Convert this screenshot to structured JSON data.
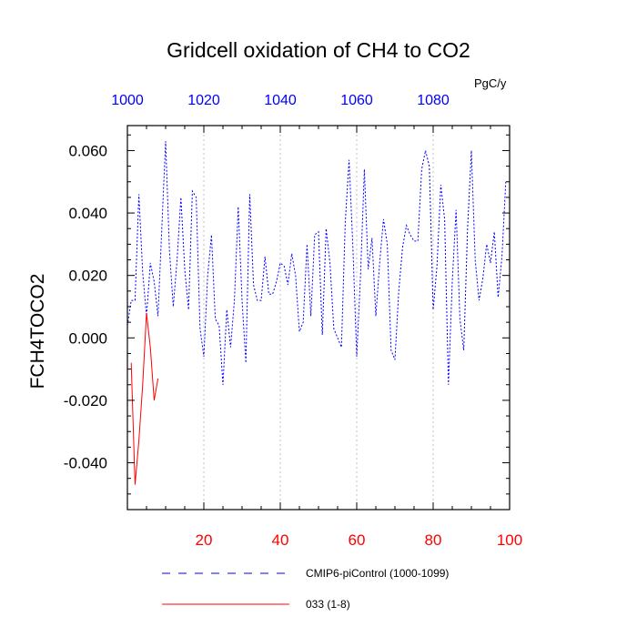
{
  "chart_data": {
    "type": "line",
    "title": "Gridcell oxidation of CH4 to CO2",
    "ylabel": "FCH4TOCO2",
    "units": "PgC/y",
    "bottom_axis": {
      "range": [
        0,
        100
      ],
      "ticks": [
        20,
        40,
        60,
        80,
        100
      ],
      "tick_labels": [
        "20",
        "40",
        "60",
        "80",
        "100"
      ],
      "color": "#ff0000"
    },
    "top_axis": {
      "range": [
        1000,
        1100
      ],
      "ticks": [
        1000,
        1020,
        1040,
        1060,
        1080
      ],
      "tick_labels": [
        "1000",
        "1020",
        "1040",
        "1060",
        "1080"
      ],
      "color": "#0000ff"
    },
    "y_axis": {
      "range": [
        -0.055,
        0.068
      ],
      "ticks": [
        -0.04,
        -0.02,
        0,
        0.02,
        0.04,
        0.06
      ],
      "tick_labels": [
        "-0.040",
        "-0.020",
        "0.000",
        "0.020",
        "0.040",
        "0.060"
      ]
    },
    "grid": {
      "vertical_dashed": [
        20,
        40,
        60,
        80
      ]
    },
    "series": [
      {
        "name": "CMIP6-piControl (1000-1099)",
        "axis": "top",
        "color": "#0000ff",
        "style": "dashed",
        "x": [
          1000,
          1001,
          1002,
          1003,
          1004,
          1005,
          1006,
          1007,
          1008,
          1009,
          1010,
          1011,
          1012,
          1013,
          1014,
          1015,
          1016,
          1017,
          1018,
          1019,
          1020,
          1021,
          1022,
          1023,
          1024,
          1025,
          1026,
          1027,
          1028,
          1029,
          1030,
          1031,
          1032,
          1033,
          1034,
          1035,
          1036,
          1037,
          1038,
          1039,
          1040,
          1041,
          1042,
          1043,
          1044,
          1045,
          1046,
          1047,
          1048,
          1049,
          1050,
          1051,
          1052,
          1053,
          1054,
          1055,
          1056,
          1057,
          1058,
          1059,
          1060,
          1061,
          1062,
          1063,
          1064,
          1065,
          1066,
          1067,
          1068,
          1069,
          1070,
          1071,
          1072,
          1073,
          1074,
          1075,
          1076,
          1077,
          1078,
          1079,
          1080,
          1081,
          1082,
          1083,
          1084,
          1085,
          1086,
          1087,
          1088,
          1089,
          1090,
          1091,
          1092,
          1093,
          1094,
          1095,
          1096,
          1097,
          1098,
          1099
        ],
        "values": [
          0.004,
          0.012,
          0.012,
          0.046,
          0.021,
          0.007,
          0.024,
          0.018,
          0.007,
          0.035,
          0.063,
          0.028,
          0.01,
          0.025,
          0.045,
          0.022,
          0.009,
          0.047,
          0.045,
          0.003,
          -0.006,
          0.02,
          0.033,
          0.006,
          0.004,
          -0.015,
          0.009,
          -0.003,
          0.012,
          0.042,
          0.012,
          -0.008,
          0.046,
          0.017,
          0.012,
          0.012,
          0.026,
          0.014,
          0.014,
          0.018,
          0.024,
          0.023,
          0.017,
          0.027,
          0.02,
          0.002,
          0.005,
          0.03,
          0.007,
          0.033,
          0.034,
          0.001,
          0.035,
          0.024,
          0.003,
          0.0,
          -0.003,
          0.037,
          0.057,
          0.029,
          -0.006,
          0.02,
          0.054,
          0.022,
          0.032,
          0.007,
          0.024,
          0.038,
          0.03,
          -0.004,
          -0.007,
          0.015,
          0.029,
          0.036,
          0.033,
          0.031,
          0.031,
          0.054,
          0.06,
          0.055,
          0.009,
          0.023,
          0.049,
          0.038,
          -0.015,
          0.018,
          0.041,
          0.006,
          -0.004,
          0.035,
          0.06,
          0.025,
          0.012,
          0.019,
          0.03,
          0.024,
          0.034,
          0.013,
          0.026,
          0.05
        ]
      },
      {
        "name": "033 (1-8)",
        "axis": "bottom",
        "color": "#ff0000",
        "style": "solid",
        "x": [
          1,
          2,
          3,
          4,
          5,
          6,
          7,
          8
        ],
        "values": [
          -0.008,
          -0.047,
          -0.033,
          -0.015,
          0.008,
          -0.003,
          -0.02,
          -0.013
        ]
      }
    ]
  }
}
